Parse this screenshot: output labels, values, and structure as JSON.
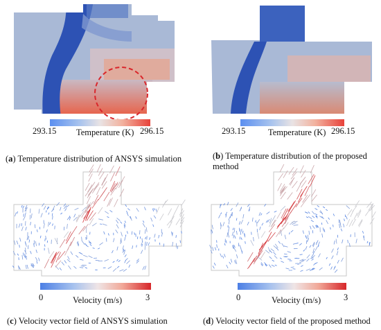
{
  "panels": [
    {
      "id": "a",
      "letter": "a",
      "caption": " Temperature distribution of ANSYS simulation",
      "colorbar": {
        "min": "293.15",
        "max": "296.15",
        "label": "Temperature (K)"
      }
    },
    {
      "id": "b",
      "letter": "b",
      "caption_line1": " Temperature distribution of the proposed",
      "caption_line2": "method",
      "colorbar": {
        "min": "293.15",
        "max": "296.15",
        "label": "Temperature (K)"
      }
    },
    {
      "id": "c",
      "letter": "c",
      "caption": " Velocity vector field of ANSYS simulation",
      "colorbar": {
        "min": "0",
        "max": "3",
        "label": "Velocity (m/s)"
      }
    },
    {
      "id": "d",
      "letter": "d",
      "caption": " Velocity vector field of the proposed method",
      "colorbar": {
        "min": "0",
        "max": "3",
        "label": "Velocity (m/s)"
      }
    }
  ],
  "colors": {
    "cold": "#2f56b8",
    "field": "#a7b9d8",
    "hot": "#e26d55",
    "highlight_circle": "#d9262b"
  }
}
